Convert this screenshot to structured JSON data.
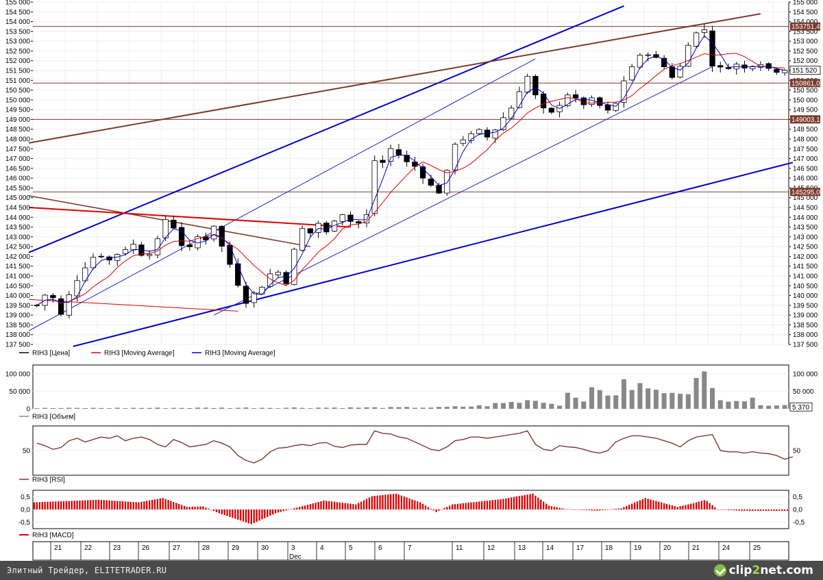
{
  "chart_data": [
    {
      "type": "candlestick",
      "ylim": [
        137500,
        155000
      ],
      "yticks": [
        "155 000",
        "154 500",
        "154 000",
        "153 500",
        "153 000",
        "152 500",
        "152 000",
        "151 500",
        "151 000",
        "150 500",
        "150 000",
        "149 500",
        "149 000",
        "148 500",
        "148 000",
        "147 500",
        "147 000",
        "146 500",
        "146 000",
        "145 500",
        "145 000",
        "144 500",
        "144 000",
        "143 500",
        "143 000",
        "142 500",
        "142 000",
        "141 500",
        "141 000",
        "140 500",
        "140 000",
        "139 500",
        "139 000",
        "138 500",
        "138 000",
        "137 500"
      ],
      "price_path": [
        [
          0,
          139500
        ],
        [
          1.5,
          140300
        ],
        [
          3,
          139000
        ],
        [
          4.5,
          140500
        ],
        [
          6,
          141500
        ],
        [
          7.5,
          142200
        ],
        [
          9,
          141800
        ],
        [
          10.5,
          142300
        ],
        [
          12,
          142600
        ],
        [
          13.5,
          141900
        ],
        [
          15,
          142800
        ],
        [
          16,
          143900
        ],
        [
          17,
          143500
        ],
        [
          18,
          142600
        ],
        [
          19,
          142400
        ],
        [
          20,
          143000
        ],
        [
          21,
          142900
        ],
        [
          22,
          143600
        ],
        [
          23,
          142500
        ],
        [
          24,
          141600
        ],
        [
          25,
          140600
        ],
        [
          26,
          139700
        ],
        [
          26.5,
          139200
        ],
        [
          27,
          140100
        ],
        [
          28,
          140500
        ],
        [
          29,
          141100
        ],
        [
          30,
          141200
        ],
        [
          31,
          140700
        ],
        [
          32,
          142300
        ],
        [
          33,
          143400
        ],
        [
          34,
          143200
        ],
        [
          35,
          143700
        ],
        [
          36,
          143200
        ],
        [
          37,
          143900
        ],
        [
          38,
          144200
        ],
        [
          39,
          143800
        ],
        [
          40,
          143700
        ],
        [
          41,
          144100
        ],
        [
          41.5,
          145600
        ],
        [
          42,
          146900
        ],
        [
          43,
          146800
        ],
        [
          44,
          147500
        ],
        [
          45,
          147200
        ],
        [
          46,
          146800
        ],
        [
          47,
          146600
        ],
        [
          48,
          146100
        ],
        [
          49,
          145600
        ],
        [
          50,
          145300
        ],
        [
          51,
          146300
        ],
        [
          52,
          147800
        ],
        [
          53,
          148000
        ],
        [
          54,
          148200
        ],
        [
          55,
          148400
        ],
        [
          56,
          148100
        ],
        [
          57,
          148500
        ],
        [
          58,
          149100
        ],
        [
          59,
          149600
        ],
        [
          60,
          150500
        ],
        [
          61,
          151200
        ],
        [
          61.5,
          151700
        ],
        [
          62,
          150200
        ],
        [
          63,
          149500
        ],
        [
          64,
          149300
        ],
        [
          65,
          149800
        ],
        [
          66,
          150300
        ],
        [
          67,
          150000
        ],
        [
          68,
          149800
        ],
        [
          69,
          150000
        ],
        [
          70,
          149700
        ],
        [
          71,
          149400
        ],
        [
          72,
          149800
        ],
        [
          73,
          151000
        ],
        [
          74,
          151700
        ],
        [
          75,
          152200
        ],
        [
          76,
          152400
        ],
        [
          77,
          152100
        ],
        [
          78,
          151700
        ],
        [
          79,
          151200
        ],
        [
          80,
          151700
        ],
        [
          81,
          152900
        ],
        [
          82,
          153400
        ],
        [
          83,
          153600
        ],
        [
          83.5,
          151000
        ],
        [
          84,
          151800
        ],
        [
          85,
          151600
        ],
        [
          86,
          151700
        ],
        [
          87,
          151800
        ],
        [
          88,
          151600
        ],
        [
          89,
          151800
        ],
        [
          90,
          151900
        ],
        [
          91,
          151600
        ],
        [
          92,
          151500
        ],
        [
          93,
          151600
        ]
      ],
      "horizontal_levels": [
        {
          "price": 153751,
          "label": "153751,4"
        },
        {
          "price": 150861,
          "label": "150861,0"
        },
        {
          "price": 149003,
          "label": "149003,1"
        },
        {
          "price": 145295,
          "label": "145295,0"
        }
      ],
      "last_price_label": "151 520",
      "trendlines": [
        {
          "color": "#0000cc",
          "width": 2,
          "from": [
            -1,
            142200
          ],
          "to": [
            73,
            154800
          ]
        },
        {
          "color": "#0000cc",
          "width": 2,
          "from": [
            4.5,
            137400
          ],
          "to": [
            94,
            146800
          ]
        },
        {
          "color": "#2222cc",
          "width": 1,
          "from": [
            -1,
            138200
          ],
          "to": [
            62,
            152100
          ]
        },
        {
          "color": "#2222cc",
          "width": 1,
          "from": [
            22,
            139000
          ],
          "to": [
            84,
            151700
          ]
        },
        {
          "color": "#7a3b2e",
          "width": 2,
          "from": [
            -1,
            147800
          ],
          "to": [
            90,
            154400
          ]
        },
        {
          "color": "#7a3b2e",
          "width": 1.6,
          "from": [
            -1,
            145100
          ],
          "to": [
            34,
            142500
          ]
        },
        {
          "color": "#dd0000",
          "width": 2,
          "from": [
            -1,
            144500
          ],
          "to": [
            39,
            143500
          ]
        },
        {
          "color": "#dd0000",
          "width": 1,
          "from": [
            -1,
            139800
          ],
          "to": [
            25,
            139200
          ]
        }
      ],
      "legend": [
        {
          "name": "RIH3 [Цена]",
          "color": "#000000"
        },
        {
          "name": "RIH3 [Moving Average]",
          "color": "#dd0000"
        },
        {
          "name": "RIH3 [Moving Average]",
          "color": "#0000cc"
        }
      ]
    },
    {
      "type": "bar",
      "series_name": "RIH3 [Объем]",
      "ylim": [
        0,
        125000
      ],
      "yticks": [
        "100 000",
        "50 000",
        "0"
      ],
      "last_value_label": "5 370",
      "profile": [
        [
          0,
          2000
        ],
        [
          40,
          3500
        ],
        [
          50,
          4000
        ],
        [
          55,
          8000
        ],
        [
          59,
          18000
        ],
        [
          61,
          22000
        ],
        [
          62,
          36000
        ],
        [
          63,
          18000
        ],
        [
          65,
          14000
        ],
        [
          66,
          45000
        ],
        [
          68,
          38000
        ],
        [
          70,
          48000
        ],
        [
          72,
          50000
        ],
        [
          74,
          70000
        ],
        [
          76,
          52000
        ],
        [
          77,
          60000
        ],
        [
          78,
          34000
        ],
        [
          79,
          72000
        ],
        [
          80,
          64000
        ],
        [
          81,
          74000
        ],
        [
          82,
          72000
        ],
        [
          83,
          80000
        ],
        [
          83.5,
          50000
        ],
        [
          84,
          52000
        ],
        [
          86,
          36000
        ],
        [
          88,
          26000
        ],
        [
          90,
          18000
        ],
        [
          93,
          10000
        ]
      ]
    },
    {
      "type": "line",
      "series_name": "RIH3 [RSI]",
      "ylim": [
        10,
        90
      ],
      "yticks": [
        "50"
      ],
      "values": [
        62,
        58,
        52,
        55,
        66,
        70,
        64,
        68,
        72,
        70,
        74,
        66,
        70,
        72,
        68,
        60,
        56,
        68,
        63,
        56,
        58,
        60,
        66,
        62,
        56,
        42,
        34,
        30,
        36,
        48,
        54,
        55,
        58,
        60,
        58,
        62,
        63,
        57,
        55,
        59,
        60,
        60,
        82,
        78,
        77,
        72,
        70,
        64,
        58,
        52,
        50,
        56,
        66,
        68,
        72,
        72,
        70,
        72,
        74,
        76,
        78,
        82,
        60,
        52,
        50,
        58,
        56,
        55,
        52,
        48,
        46,
        50,
        64,
        70,
        74,
        74,
        72,
        70,
        66,
        62,
        56,
        66,
        72,
        74,
        76,
        50,
        48,
        48,
        46,
        48,
        46,
        45,
        42,
        36,
        40
      ]
    },
    {
      "type": "bar",
      "series_name": "RIH3 [MACD]",
      "ylim": [
        -0.75,
        0.75
      ],
      "yticks": [
        "0,5",
        "0,0",
        "-0,5"
      ],
      "profile": [
        [
          0,
          0.28
        ],
        [
          8,
          0.38
        ],
        [
          13,
          0.28
        ],
        [
          16,
          0.45
        ],
        [
          19,
          0.1
        ],
        [
          21,
          0.12
        ],
        [
          23,
          -0.15
        ],
        [
          27,
          -0.58
        ],
        [
          30,
          -0.15
        ],
        [
          33,
          0.1
        ],
        [
          36,
          0.35
        ],
        [
          40,
          0.2
        ],
        [
          42,
          0.52
        ],
        [
          45,
          0.62
        ],
        [
          48,
          0.28
        ],
        [
          50,
          -0.1
        ],
        [
          52,
          0.2
        ],
        [
          58,
          0.4
        ],
        [
          62,
          0.62
        ],
        [
          64,
          0.15
        ],
        [
          66,
          0.02
        ],
        [
          70,
          -0.05
        ],
        [
          73,
          0.05
        ],
        [
          76,
          0.45
        ],
        [
          80,
          0.1
        ],
        [
          82,
          0.25
        ],
        [
          83.5,
          0.38
        ],
        [
          85,
          0.0
        ],
        [
          88,
          -0.05
        ],
        [
          93,
          -0.05
        ]
      ]
    }
  ],
  "axis": {
    "days": [
      "21",
      "22",
      "23",
      "26",
      "27",
      "28",
      "29",
      "30",
      "3",
      "4",
      "5",
      "6",
      "7",
      "11",
      "12",
      "13",
      "14",
      "17",
      "18",
      "19",
      "20",
      "21",
      "24",
      "25"
    ],
    "month_label": "Dec"
  },
  "footer": {
    "text": "Элитный Трейдер, ELITETRADER.RU",
    "brand_left": "clip",
    "brand_mid": "2",
    "brand_right": "net.com"
  },
  "colors": {
    "bull": "#ffffff",
    "bear": "#000000",
    "ma_fast": "#0000cc",
    "ma_slow": "#dd0000",
    "volume": "#888888",
    "rsi": "#7a3b2e",
    "macd": "#dd0000",
    "level": "#7a3b2e"
  }
}
